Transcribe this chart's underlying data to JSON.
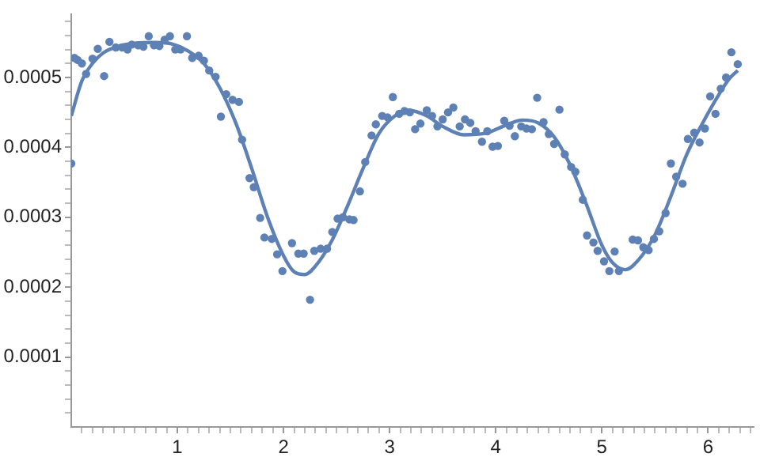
{
  "chart_data": {
    "type": "scatter",
    "legend": false,
    "grid": false,
    "xlim": [
      0,
      6.43
    ],
    "ylim": [
      0,
      0.00059
    ],
    "xticks": [
      {
        "value": 0.1,
        "label": null
      },
      {
        "value": 0.2,
        "label": null
      },
      {
        "value": 0.3,
        "label": null
      },
      {
        "value": 0.4,
        "label": null
      },
      {
        "value": 0.5,
        "label": null
      },
      {
        "value": 0.6,
        "label": null
      },
      {
        "value": 0.7,
        "label": null
      },
      {
        "value": 0.8,
        "label": null
      },
      {
        "value": 0.9,
        "label": null
      },
      1,
      {
        "value": 1.1,
        "label": null
      },
      {
        "value": 1.2,
        "label": null
      },
      {
        "value": 1.3,
        "label": null
      },
      {
        "value": 1.4,
        "label": null
      },
      {
        "value": 1.5,
        "label": null
      },
      {
        "value": 1.6,
        "label": null
      },
      {
        "value": 1.7,
        "label": null
      },
      {
        "value": 1.8,
        "label": null
      },
      {
        "value": 1.9,
        "label": null
      },
      2,
      {
        "value": 2.1,
        "label": null
      },
      {
        "value": 2.2,
        "label": null
      },
      {
        "value": 2.3,
        "label": null
      },
      {
        "value": 2.4,
        "label": null
      },
      {
        "value": 2.5,
        "label": null
      },
      {
        "value": 2.6,
        "label": null
      },
      {
        "value": 2.7,
        "label": null
      },
      {
        "value": 2.8,
        "label": null
      },
      {
        "value": 2.9,
        "label": null
      },
      3,
      {
        "value": 3.1,
        "label": null
      },
      {
        "value": 3.2,
        "label": null
      },
      {
        "value": 3.3,
        "label": null
      },
      {
        "value": 3.4,
        "label": null
      },
      {
        "value": 3.5,
        "label": null
      },
      {
        "value": 3.6,
        "label": null
      },
      {
        "value": 3.7,
        "label": null
      },
      {
        "value": 3.8,
        "label": null
      },
      {
        "value": 3.9,
        "label": null
      },
      4,
      {
        "value": 4.1,
        "label": null
      },
      {
        "value": 4.2,
        "label": null
      },
      {
        "value": 4.3,
        "label": null
      },
      {
        "value": 4.4,
        "label": null
      },
      {
        "value": 4.5,
        "label": null
      },
      {
        "value": 4.6,
        "label": null
      },
      {
        "value": 4.7,
        "label": null
      },
      {
        "value": 4.8,
        "label": null
      },
      {
        "value": 4.9,
        "label": null
      },
      5,
      {
        "value": 5.1,
        "label": null
      },
      {
        "value": 5.2,
        "label": null
      },
      {
        "value": 5.3,
        "label": null
      },
      {
        "value": 5.4,
        "label": null
      },
      {
        "value": 5.5,
        "label": null
      },
      {
        "value": 5.6,
        "label": null
      },
      {
        "value": 5.7,
        "label": null
      },
      {
        "value": 5.8,
        "label": null
      },
      {
        "value": 5.9,
        "label": null
      },
      6,
      {
        "value": 6.1,
        "label": null
      },
      {
        "value": 6.2,
        "label": null
      },
      {
        "value": 6.3,
        "label": null
      },
      {
        "value": 6.4,
        "label": null
      }
    ],
    "yticks": [
      {
        "value": 2e-05,
        "label": null
      },
      {
        "value": 4e-05,
        "label": null
      },
      {
        "value": 6e-05,
        "label": null
      },
      {
        "value": 8e-05,
        "label": null
      },
      0.0001,
      {
        "value": 0.00012,
        "label": null
      },
      {
        "value": 0.00014,
        "label": null
      },
      {
        "value": 0.00016,
        "label": null
      },
      {
        "value": 0.00018,
        "label": null
      },
      0.0002,
      {
        "value": 0.00022,
        "label": null
      },
      {
        "value": 0.00024,
        "label": null
      },
      {
        "value": 0.00026,
        "label": null
      },
      {
        "value": 0.00028,
        "label": null
      },
      0.0003,
      {
        "value": 0.00032,
        "label": null
      },
      {
        "value": 0.00034,
        "label": null
      },
      {
        "value": 0.00036,
        "label": null
      },
      {
        "value": 0.00038,
        "label": null
      },
      0.0004,
      {
        "value": 0.00042,
        "label": null
      },
      {
        "value": 0.00044,
        "label": null
      },
      {
        "value": 0.00046,
        "label": null
      },
      {
        "value": 0.00048,
        "label": null
      },
      0.0005,
      {
        "value": 0.00052,
        "label": null
      },
      {
        "value": 0.00054,
        "label": null
      },
      {
        "value": 0.00056,
        "label": null
      },
      {
        "value": 0.00058,
        "label": null
      }
    ],
    "series": [
      {
        "marker": "circle",
        "color": "#5e81b5",
        "x": [
          0,
          0.03,
          0.06,
          0.1,
          0.14,
          0.2,
          0.25,
          0.31,
          0.36,
          0.42,
          0.48,
          0.53,
          0.57,
          0.63,
          0.68,
          0.73,
          0.78,
          0.83,
          0.88,
          0.93,
          0.98,
          1.03,
          1.09,
          1.14,
          1.2,
          1.25,
          1.3,
          1.36,
          1.41,
          1.46,
          1.52,
          1.58,
          1.61,
          1.68,
          1.72,
          1.78,
          1.82,
          1.89,
          1.94,
          1.99,
          2.08,
          2.14,
          2.19,
          2.25,
          2.29,
          2.35,
          2.41,
          2.46,
          2.51,
          2.56,
          2.62,
          2.66,
          2.72,
          2.77,
          2.83,
          2.87,
          2.93,
          2.98,
          3.03,
          3.09,
          3.14,
          3.19,
          3.24,
          3.29,
          3.35,
          3.4,
          3.45,
          3.5,
          3.55,
          3.6,
          3.66,
          3.71,
          3.76,
          3.81,
          3.87,
          3.92,
          3.97,
          4.02,
          4.08,
          4.13,
          4.18,
          4.24,
          4.29,
          4.34,
          4.39,
          4.45,
          4.5,
          4.55,
          4.6,
          4.65,
          4.71,
          4.75,
          4.82,
          4.86,
          4.92,
          4.96,
          5.02,
          5.07,
          5.12,
          5.16,
          5.29,
          5.34,
          5.39,
          5.44,
          5.49,
          5.54,
          5.6,
          5.65,
          5.7,
          5.76,
          5.81,
          5.87,
          5.92,
          5.97,
          6.02,
          6.07,
          6.12,
          6.17,
          6.22,
          6.28
        ],
        "values": [
          0.000377,
          0.000528,
          0.000525,
          0.00052,
          0.000505,
          0.000527,
          0.000541,
          0.000502,
          0.000551,
          0.000543,
          0.000543,
          0.00054,
          0.000547,
          0.000546,
          0.000544,
          0.000559,
          0.000546,
          0.000545,
          0.000554,
          0.000559,
          0.00054,
          0.00054,
          0.000559,
          0.000528,
          0.000531,
          0.000524,
          0.00051,
          0.000501,
          0.000444,
          0.000476,
          0.000468,
          0.000465,
          0.000411,
          0.000356,
          0.000343,
          0.000299,
          0.000271,
          0.000269,
          0.000247,
          0.000223,
          0.000263,
          0.000248,
          0.000248,
          0.000182,
          0.000252,
          0.000255,
          0.000255,
          0.000279,
          0.000298,
          0.0003,
          0.000297,
          0.000296,
          0.000337,
          0.000379,
          0.000417,
          0.000433,
          0.000445,
          0.000443,
          0.000472,
          0.000448,
          0.000452,
          0.00045,
          0.000426,
          0.000434,
          0.000453,
          0.000445,
          0.00043,
          0.00044,
          0.00045,
          0.000457,
          0.00043,
          0.00044,
          0.000435,
          0.000423,
          0.000408,
          0.000423,
          0.000401,
          0.000402,
          0.000438,
          0.000431,
          0.000416,
          0.00043,
          0.000427,
          0.000426,
          0.000471,
          0.000436,
          0.000419,
          0.000405,
          0.000454,
          0.00039,
          0.000372,
          0.000365,
          0.000325,
          0.000274,
          0.000264,
          0.000252,
          0.000237,
          0.000223,
          0.000251,
          0.000223,
          0.000268,
          0.000267,
          0.000257,
          0.000253,
          0.000269,
          0.00028,
          0.000306,
          0.000377,
          0.000358,
          0.000348,
          0.000412,
          0.000421,
          0.000407,
          0.000427,
          0.000473,
          0.000448,
          0.000484,
          0.0005,
          0.000536,
          0.000519
        ]
      },
      {
        "type": "line",
        "color": "#5e81b5",
        "x": [
          0,
          0.1,
          0.2,
          0.3,
          0.45,
          0.6,
          0.8,
          0.95,
          1.1,
          1.25,
          1.4,
          1.55,
          1.7,
          1.85,
          2,
          2.1,
          2.2,
          2.3,
          2.45,
          2.6,
          2.75,
          2.9,
          3.05,
          3.18,
          3.35,
          3.5,
          3.7,
          3.9,
          4.1,
          4.25,
          4.4,
          4.55,
          4.7,
          4.85,
          5,
          5.1,
          5.22,
          5.35,
          5.5,
          5.65,
          5.8,
          5.95,
          6.1,
          6.2,
          6.28
        ],
        "values": [
          0.000445,
          0.000495,
          0.00052,
          0.000535,
          0.000545,
          0.000549,
          0.00055,
          0.000548,
          0.000538,
          0.00052,
          0.000485,
          0.000435,
          0.00037,
          0.0003,
          0.000245,
          0.000222,
          0.000218,
          0.00023,
          0.000265,
          0.000315,
          0.00037,
          0.00042,
          0.000445,
          0.000453,
          0.000445,
          0.00043,
          0.000418,
          0.00042,
          0.000432,
          0.000439,
          0.000435,
          0.000415,
          0.000375,
          0.00032,
          0.00026,
          0.000235,
          0.000225,
          0.00024,
          0.000275,
          0.00033,
          0.00039,
          0.000435,
          0.000475,
          0.000498,
          0.00051
        ]
      }
    ]
  }
}
